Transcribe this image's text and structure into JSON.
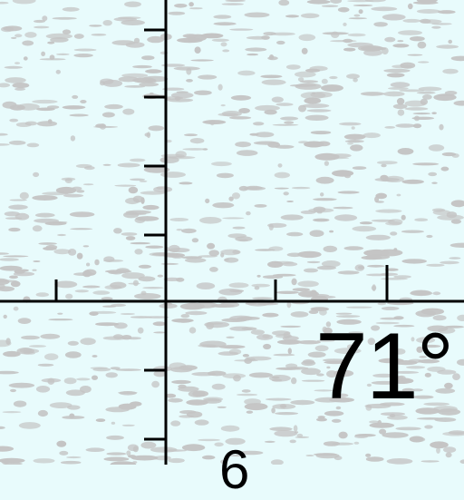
{
  "map": {
    "colors": {
      "water": "#e8fbfc",
      "ice_texture": "#c4c4c4",
      "grid_line": "#000000"
    },
    "labels": {
      "meridian_value": "71°",
      "partial_label": "6"
    }
  }
}
